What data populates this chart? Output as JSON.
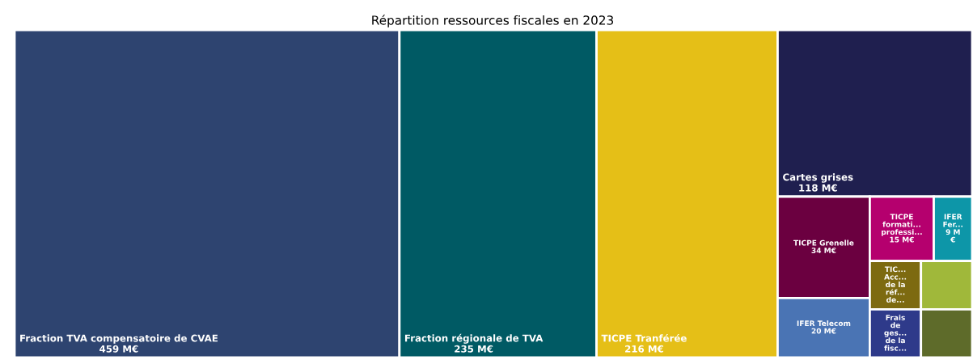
{
  "chart_data": {
    "type": "other",
    "title": "Répartition ressources fiscales en 2023",
    "categories": [
      "Fraction TVA compensatoire de CVAE",
      "Fraction régionale de TVA",
      "TICPE Tranférée",
      "Cartes grises",
      "TICPE Grenelle",
      "IFER Telecom",
      "TICPE\nformati...\nprofessi...",
      "IFER\nFer...",
      "TIC...\nAcc...\nde la\nréf...\nde...",
      "Frais\nde\nges...\nde la\nfisc...",
      null,
      null
    ],
    "values": [
      459,
      235,
      216,
      118,
      34,
      20,
      15,
      9,
      null,
      null,
      null,
      null
    ],
    "value_labels": [
      "459 M€",
      "235 M€",
      "216 M€",
      "118 M€",
      "34 M€",
      "20 M€",
      "15 M€",
      "9 M\n€",
      null,
      null,
      null,
      null
    ],
    "colors": [
      "#2e4470",
      "#005a64",
      "#e5bf17",
      "#1f1f4f",
      "#6b0040",
      "#4a74b4",
      "#b5006e",
      "#0d96a8",
      "#7d6a10",
      "#2e3a8a",
      "#a0b83a",
      "#5e6b2a"
    ]
  }
}
